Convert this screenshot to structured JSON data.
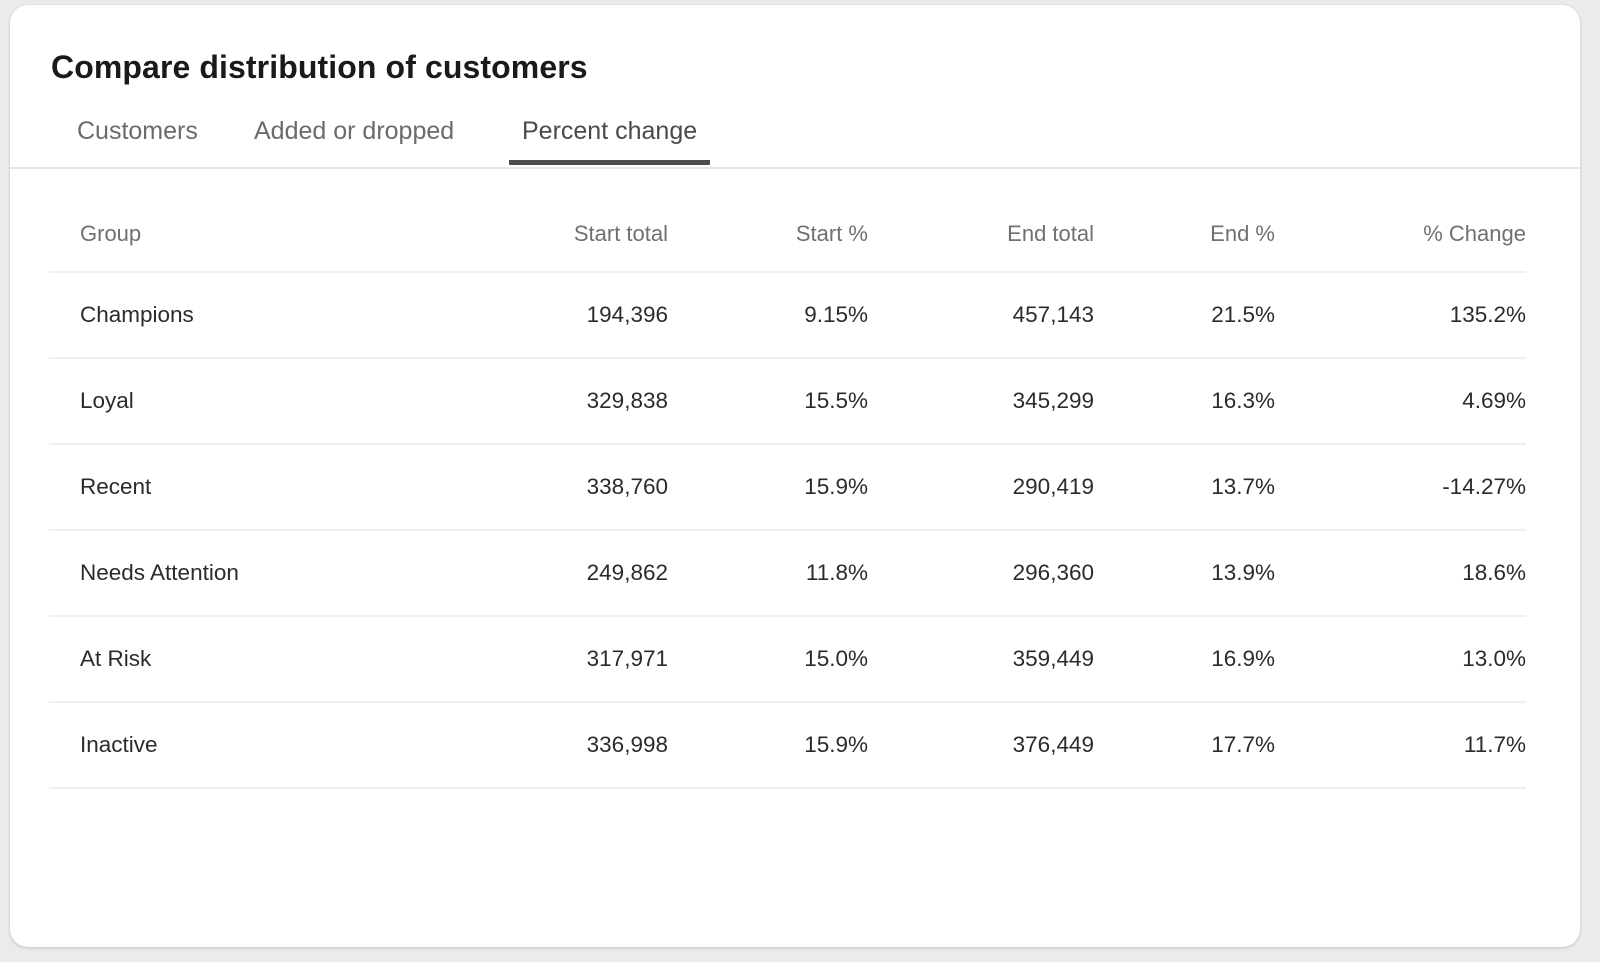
{
  "title": "Compare distribution of customers",
  "tabs": [
    {
      "label": "Customers",
      "active": false
    },
    {
      "label": "Added or dropped",
      "active": false
    },
    {
      "label": "Percent change",
      "active": true
    }
  ],
  "table": {
    "columns": [
      "Group",
      "Start total",
      "Start %",
      "End total",
      "End %",
      "% Change"
    ],
    "rows": [
      [
        "Champions",
        "194,396",
        "9.15%",
        "457,143",
        "21.5%",
        "135.2%"
      ],
      [
        "Loyal",
        "329,838",
        "15.5%",
        "345,299",
        "16.3%",
        "4.69%"
      ],
      [
        "Recent",
        "338,760",
        "15.9%",
        "290,419",
        "13.7%",
        "-14.27%"
      ],
      [
        "Needs Attention",
        "249,862",
        "11.8%",
        "296,360",
        "13.9%",
        "18.6%"
      ],
      [
        "At Risk",
        "317,971",
        "15.0%",
        "359,449",
        "16.9%",
        "13.0%"
      ],
      [
        "Inactive",
        "336,998",
        "15.9%",
        "376,449",
        "17.7%",
        "11.7%"
      ]
    ]
  },
  "colors": {
    "background": "#ebebeb",
    "card": "#ffffff",
    "active_tab_underline": "#4c4c4c",
    "divider": "#efefef"
  }
}
